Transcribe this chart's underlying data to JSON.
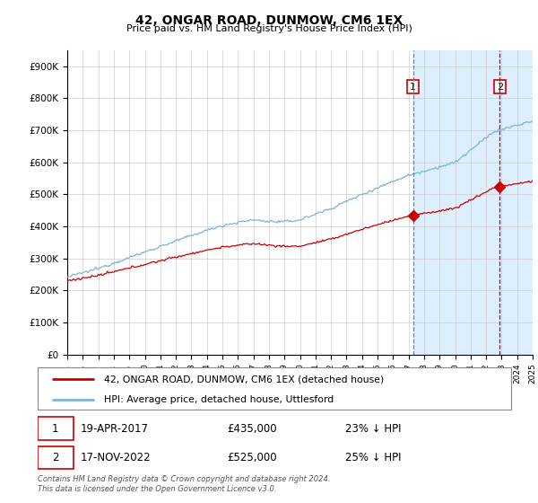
{
  "title": "42, ONGAR ROAD, DUNMOW, CM6 1EX",
  "subtitle": "Price paid vs. HM Land Registry's House Price Index (HPI)",
  "ylabel_ticks": [
    "£0",
    "£100K",
    "£200K",
    "£300K",
    "£400K",
    "£500K",
    "£600K",
    "£700K",
    "£800K",
    "£900K"
  ],
  "ytick_vals": [
    0,
    100000,
    200000,
    300000,
    400000,
    500000,
    600000,
    700000,
    800000,
    900000
  ],
  "ylim": [
    0,
    950000
  ],
  "sale1_label": "19-APR-2017",
  "sale1_price": 435000,
  "sale1_hpi_diff": "23% ↓ HPI",
  "sale1_x": 2017.29,
  "sale2_label": "17-NOV-2022",
  "sale2_price": 525000,
  "sale2_hpi_diff": "25% ↓ HPI",
  "sale2_x": 2022.88,
  "line1_color": "#cc0000",
  "line2_color": "#7fb3d3",
  "vline1_color": "#808080",
  "vline2_color": "#cc0000",
  "legend_label1": "42, ONGAR ROAD, DUNMOW, CM6 1EX (detached house)",
  "legend_label2": "HPI: Average price, detached house, Uttlesford",
  "footer": "Contains HM Land Registry data © Crown copyright and database right 2024.\nThis data is licensed under the Open Government Licence v3.0.",
  "background_color": "#ffffff",
  "plot_bg_color": "#ffffff",
  "grid_color": "#cccccc",
  "span_color": "#ddeeff",
  "xlim_start": 1995,
  "xlim_end": 2025
}
